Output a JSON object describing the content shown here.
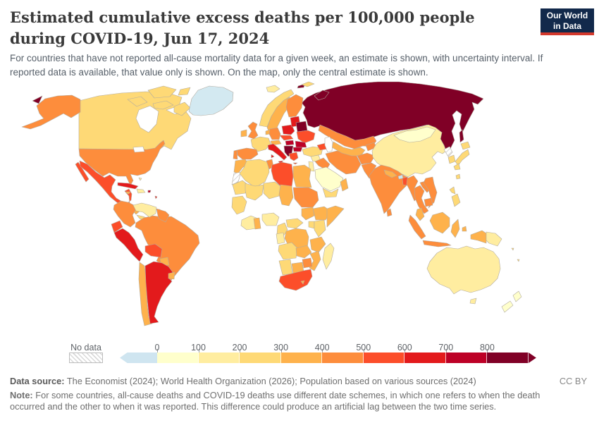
{
  "header": {
    "title": "Estimated cumulative excess deaths per 100,000 people during COVID-19, Jun 17, 2024",
    "subtitle": "For countries that have not reported all-cause mortality data for a given week, an estimate is shown, with uncertainty interval. If reported data is available, that value only is shown. On the map, only the central estimate is shown.",
    "logo": {
      "line1": "Our World",
      "line2": "in Data",
      "bg_color": "#12294b",
      "accent_color": "#d4392c"
    }
  },
  "legend": {
    "no_data_label": "No data",
    "ticks": [
      "0",
      "100",
      "200",
      "300",
      "400",
      "500",
      "600",
      "700",
      "800"
    ],
    "below_zero_color": "#cfe5f0",
    "bin_colors": [
      "#ffffcc",
      "#ffeda0",
      "#fed976",
      "#feb24c",
      "#fd8d3c",
      "#fc4e2a",
      "#e31a1c",
      "#bd0026",
      "#800026"
    ],
    "bins": [
      "<0",
      "0-100",
      "100-200",
      "200-300",
      "300-400",
      "400-500",
      "500-600",
      "600-700",
      "700-800",
      "800+"
    ]
  },
  "map": {
    "no_data_fill": "hatch",
    "regions": {
      "greenland": "#d3e9f1",
      "canada": "#fed976",
      "alaska": "#fd8d3c",
      "united-states": "#fd8d3c",
      "mexico": "#fc4e2a",
      "guatemala": "#fd8d3c",
      "honduras-nicaragua": "#feb24c",
      "costa-rica-panama": "#fed976",
      "cuba": "#e31a1c",
      "jamaica": "#feb24c",
      "hispaniola": "#ffeda0",
      "puerto-rico": "#bd0026",
      "bahamas": "#ffeda0",
      "lesser-antilles": "#e31a1c",
      "trinidad": "#fd8d3c",
      "colombia": "#fd8d3c",
      "venezuela": "#ffeda0",
      "guyanas": "#fd8d3c",
      "ecuador": "#fc4e2a",
      "peru": "#e31a1c",
      "brazil": "#fd8d3c",
      "bolivia": "#fc4e2a",
      "paraguay": "#feb24c",
      "chile": "#feb24c",
      "argentina": "#e31a1c",
      "uruguay": "#feb24c",
      "iceland": "#ffeda0",
      "svalbard": "#fed976",
      "norway": "#fed976",
      "sweden": "#feb24c",
      "finland": "#fd8d3c",
      "denmark": "#feb24c",
      "united-kingdom": "#fd8d3c",
      "ireland": "#feb24c",
      "france": "#fed976",
      "spain": "#fd8d3c",
      "portugal": "#fd8d3c",
      "germany": "#fd8d3c",
      "alpine": "#feb24c",
      "italy": "#e31a1c",
      "poland": "#e31a1c",
      "czech-slovakia": "#fc4e2a",
      "hungary": "#bd0026",
      "baltics": "#e31a1c",
      "belarus": "#800026",
      "ukraine": "#fc4e2a",
      "romania": "#bd0026",
      "balkans": "#800026",
      "bulgaria": "#bd0026",
      "greece": "#fc4e2a",
      "russia": "#800026",
      "turkey": "#fed976",
      "caucasus": "#fc4e2a",
      "syria": "#ffeda0",
      "iraq": "#fd8d3c",
      "levant": "#ffeda0",
      "saudi-arabia": "#ffffcc",
      "yemen": "#fed976",
      "oman": "#feb24c",
      "iran": "#fd8d3c",
      "kazakhstan": "#fd8d3c",
      "central-asia": "#feb24c",
      "kyrgyz-tajik": "#fd8d3c",
      "afghanistan": "#fd8d3c",
      "pakistan": "#fd8d3c",
      "india": "#fd8d3c",
      "nepal": "#feb24c",
      "bhutan": "#cfe5f0",
      "bangladesh": "#fc4e2a",
      "sri-lanka": "#fd8d3c",
      "china": "#ffeda0",
      "mongolia": "#ffffcc",
      "north-korea": "hatch",
      "south-korea": "#fed976",
      "japan": "#fed976",
      "taiwan": "#fed976",
      "myanmar": "#fd8d3c",
      "thailand": "#fd8d3c",
      "laos": "#fd8d3c",
      "vietnam": "#fd8d3c",
      "cambodia": "#fd8d3c",
      "malaysia": "#feb24c",
      "indonesia-west": "#fd8d3c",
      "indonesia-east": "#feb24c",
      "philippines": "#fed976",
      "papua-new-guinea": "#ffeda0",
      "australia": "#ffeda0",
      "new-zealand": "#ffffcc",
      "pacific-islands": "#fed976",
      "morocco": "#feb24c",
      "western-sahara": "hatch",
      "algeria": "#fed976",
      "tunisia": "#fd8d3c",
      "libya": "#fc4e2a",
      "egypt": "#feb24c",
      "mauritania": "#fed976",
      "mali": "#fed976",
      "niger": "#fed976",
      "chad": "#feb24c",
      "sudan": "#fd8d3c",
      "south-sudan": "#feb24c",
      "ethiopia": "#feb24c",
      "somalia": "#feb24c",
      "west-africa": "#fed976",
      "gulf-coast": "#ffeda0",
      "ghana": "#feb24c",
      "nigeria": "#ffeda0",
      "cameroon": "#fed976",
      "central-african-republic": "#fed976",
      "uganda": "#fed976",
      "kenya": "#fed976",
      "drc": "#feb24c",
      "gabon-congo": "#ffeda0",
      "tanzania": "#feb24c",
      "angola": "#fed976",
      "zambia": "#feb24c",
      "mozambique": "#feb24c",
      "zimbabwe": "#fd8d3c",
      "namibia": "#fed976",
      "botswana": "#feb24c",
      "lesotho": "#feb24c",
      "south-africa": "#fc4e2a",
      "madagascar": "#ffeda0"
    }
  },
  "footer": {
    "data_source_label": "Data source:",
    "data_source": " The Economist (2024); World Health Organization (2026); Population based on various sources (2024)",
    "license": "CC BY",
    "note_label": "Note:",
    "note": " For some countries, all-cause deaths and COVID-19 deaths use different date schemes, in which one refers to when the death occurred and the other to when it was reported. This difference could produce an artificial lag between the two time series."
  }
}
